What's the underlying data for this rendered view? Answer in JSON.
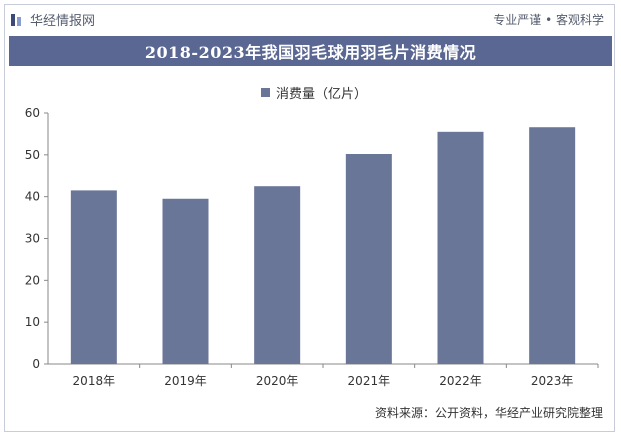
{
  "header": {
    "logo_text": "华经情报网",
    "slogan": "专业严谨 • 客观科学"
  },
  "chart_data": {
    "type": "bar",
    "title": "2018-2023年我国羽毛球用羽毛片消费情况",
    "categories": [
      "2018年",
      "2019年",
      "2020年",
      "2021年",
      "2022年",
      "2023年"
    ],
    "series": [
      {
        "name": "消费量（亿片）",
        "values": [
          41.5,
          39.5,
          42.5,
          50.2,
          55.5,
          56.6
        ]
      }
    ],
    "ylim": [
      0,
      60
    ],
    "yticks": [
      0,
      10,
      20,
      30,
      40,
      50,
      60
    ],
    "grid": false,
    "legend_position": "top-center",
    "colors": {
      "bar": "#6a7698",
      "title_bg": "#5a6792"
    }
  },
  "footer": {
    "source": "资料来源：公开资料，华经产业研究院整理"
  }
}
